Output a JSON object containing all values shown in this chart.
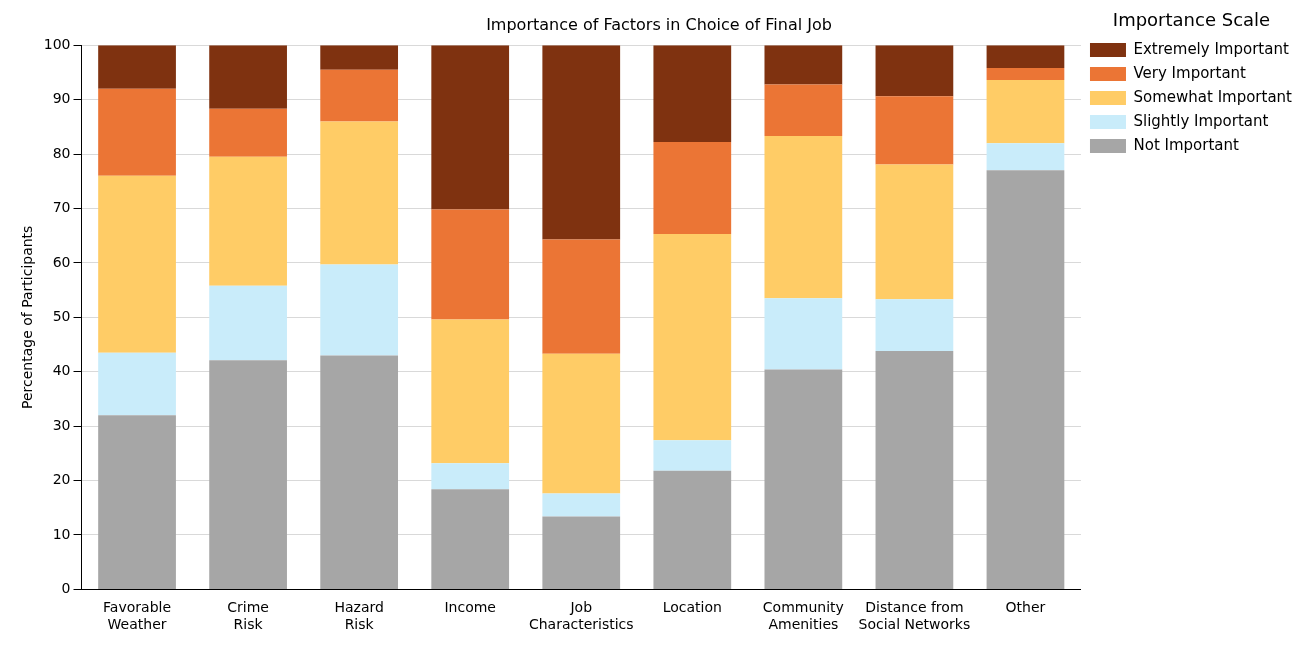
{
  "chart_data": {
    "type": "bar",
    "title": "Importance of Factors in Choice of Final Job",
    "ylabel": "Percentage of Participants",
    "legend_title": "Importance Scale",
    "categories": [
      "Favorable\nWeather",
      "Crime\nRisk",
      "Hazard\nRisk",
      "Income",
      "Job\nCharacteristics",
      "Location",
      "Community\nAmenities",
      "Distance from\nSocial Networks",
      "Other"
    ],
    "stacked": true,
    "ylim": [
      0,
      100
    ],
    "yticks": [
      0,
      10,
      20,
      30,
      40,
      50,
      60,
      70,
      80,
      90,
      100
    ],
    "grid": "y",
    "legend": "right",
    "series": [
      {
        "name": "Not Important",
        "color": "#a6a6a6",
        "values": [
          32,
          42.1,
          43,
          18.4,
          13.4,
          21.8,
          40.4,
          43.8,
          77
        ]
      },
      {
        "name": "Slightly Important",
        "color": "#c9ecfa",
        "values": [
          11.5,
          13.7,
          16.7,
          4.8,
          4.2,
          5.6,
          13.1,
          9.5,
          5
        ]
      },
      {
        "name": "Somewhat Important",
        "color": "#ffcc66",
        "values": [
          32.5,
          23.7,
          26.3,
          26.4,
          25.7,
          37.9,
          29.8,
          24.8,
          11.6
        ]
      },
      {
        "name": "Very Important",
        "color": "#eb7535",
        "values": [
          16,
          8.8,
          9.5,
          20.2,
          21,
          16.9,
          9.5,
          12.5,
          2.2
        ]
      },
      {
        "name": "Extremely Important",
        "color": "#7f3210",
        "values": [
          8,
          11.7,
          4.5,
          30.2,
          35.7,
          17.8,
          7.2,
          9.4,
          4.2
        ]
      }
    ]
  }
}
